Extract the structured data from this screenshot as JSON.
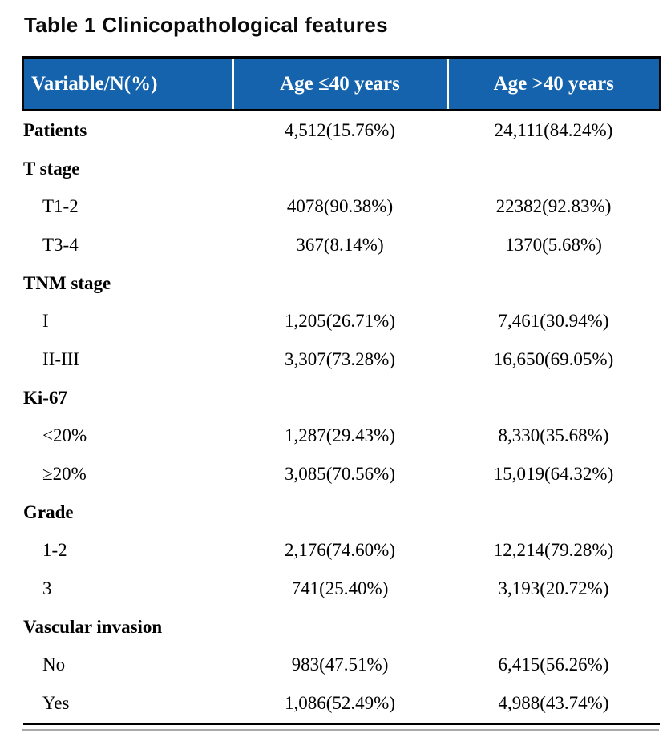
{
  "title": "Table 1 Clinicopathological features",
  "table": {
    "columns": [
      {
        "label": "Variable/N(%)"
      },
      {
        "label": "Age ≤40 years"
      },
      {
        "label": "Age >40 years"
      }
    ],
    "rows": [
      {
        "label": "Patients",
        "type": "category",
        "age_le_40": "4,512(15.76%)",
        "age_gt_40": "24,111(84.24%)"
      },
      {
        "label": "T stage",
        "type": "category",
        "age_le_40": "",
        "age_gt_40": ""
      },
      {
        "label": "T1-2",
        "type": "item",
        "age_le_40": "4078(90.38%)",
        "age_gt_40": "22382(92.83%)"
      },
      {
        "label": "T3-4",
        "type": "item",
        "age_le_40": "367(8.14%)",
        "age_gt_40": "1370(5.68%)"
      },
      {
        "label": "TNM stage",
        "type": "category",
        "age_le_40": "",
        "age_gt_40": ""
      },
      {
        "label": "I",
        "type": "item",
        "age_le_40": "1,205(26.71%)",
        "age_gt_40": "7,461(30.94%)"
      },
      {
        "label": "II-III",
        "type": "item",
        "age_le_40": "3,307(73.28%)",
        "age_gt_40": "16,650(69.05%)"
      },
      {
        "label": "Ki-67",
        "type": "category",
        "age_le_40": "",
        "age_gt_40": ""
      },
      {
        "label": "<20%",
        "type": "item",
        "age_le_40": "1,287(29.43%)",
        "age_gt_40": "8,330(35.68%)"
      },
      {
        "label": "≥20%",
        "type": "item",
        "age_le_40": "3,085(70.56%)",
        "age_gt_40": "15,019(64.32%)"
      },
      {
        "label": "Grade",
        "type": "category",
        "age_le_40": "",
        "age_gt_40": ""
      },
      {
        "label": "1-2",
        "type": "item",
        "age_le_40": "2,176(74.60%)",
        "age_gt_40": "12,214(79.28%)"
      },
      {
        "label": "3",
        "type": "item",
        "age_le_40": "741(25.40%)",
        "age_gt_40": "3,193(20.72%)"
      },
      {
        "label": "Vascular invasion",
        "type": "category",
        "age_le_40": "",
        "age_gt_40": ""
      },
      {
        "label": "No",
        "type": "item",
        "age_le_40": "983(47.51%)",
        "age_gt_40": "6,415(56.26%)"
      },
      {
        "label": "Yes",
        "type": "item",
        "age_le_40": "1,086(52.49%)",
        "age_gt_40": "4,988(43.74%)"
      }
    ]
  },
  "colors": {
    "header_bg": "#1463AC",
    "header_text": "#ffffff",
    "rule": "#000000",
    "shadow_rule": "#a9a9a9"
  }
}
